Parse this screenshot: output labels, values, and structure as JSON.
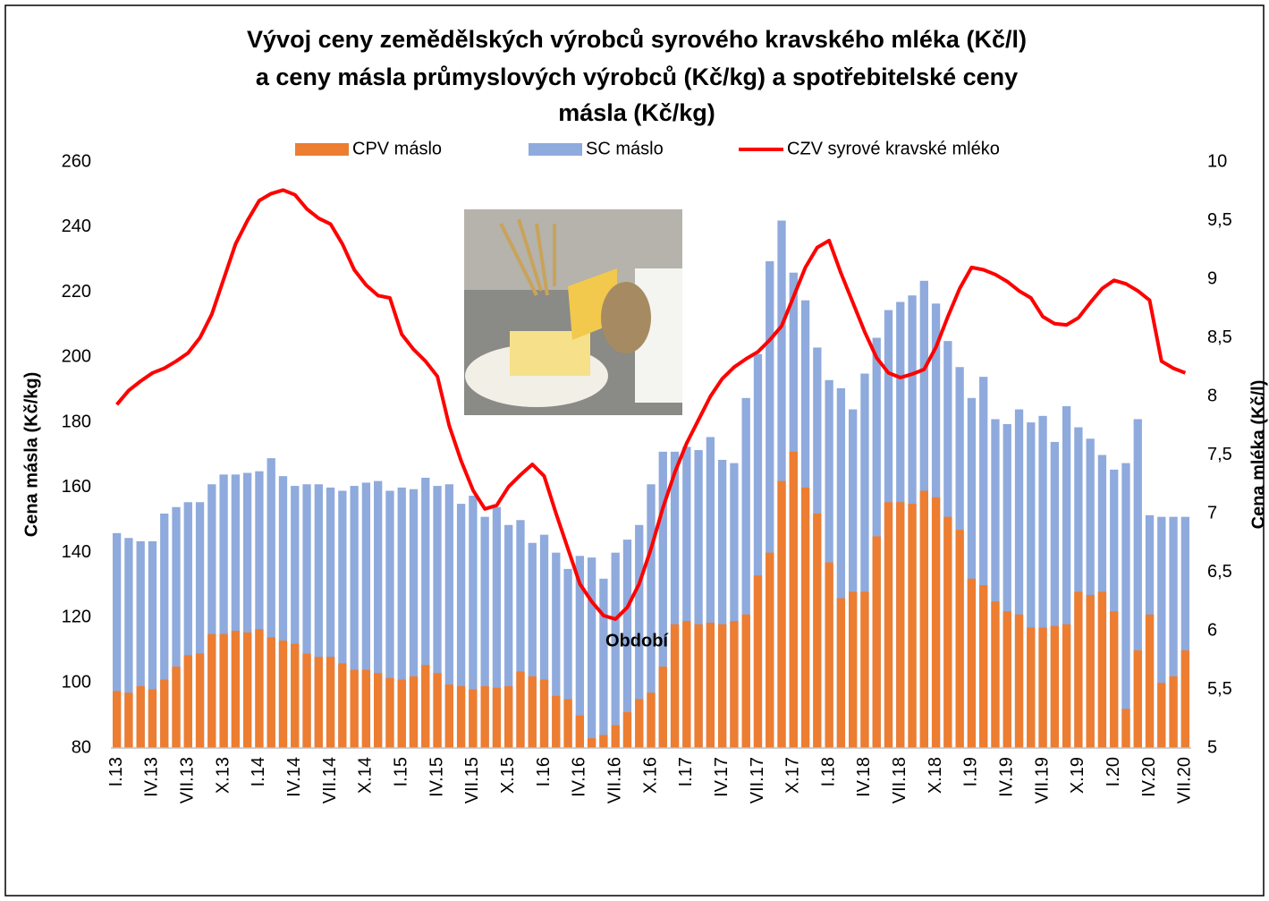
{
  "chart_data": {
    "type": "bar-line",
    "title": [
      "Vývoj ceny zemědělských výrobců syrového kravského mléka (Kč/l)",
      "a  ceny másla průmyslových výrobců (Kč/kg) a spotřebitelské ceny",
      "másla (Kč/kg)"
    ],
    "x_label": "Období",
    "y_label": "Cena másla (Kč/kg)",
    "y2_label": "Cena mléka (Kč/l)",
    "categories": [
      "I.13",
      null,
      null,
      "IV.13",
      null,
      null,
      "VII.13",
      null,
      null,
      "X.13",
      null,
      null,
      "I.14",
      null,
      null,
      "IV.14",
      null,
      null,
      "VII.14",
      null,
      null,
      "X.14",
      null,
      null,
      "I.15",
      null,
      null,
      "IV.15",
      null,
      null,
      "VII.15",
      null,
      null,
      "X.15",
      null,
      null,
      "I.16",
      null,
      null,
      "IV.16",
      null,
      null,
      "VII.16",
      null,
      null,
      "X.16",
      null,
      null,
      "I.17",
      null,
      null,
      "IV.17",
      null,
      null,
      "VII.17",
      null,
      null,
      "X.17",
      null,
      null,
      "I.18",
      null,
      null,
      "IV.18",
      null,
      null,
      "VII.18",
      null,
      null,
      "X.18",
      null,
      null,
      "I.19",
      null,
      null,
      "IV.19",
      null,
      null,
      "VII.19",
      null,
      null,
      "X.19",
      null,
      null,
      "I.20",
      null,
      null,
      "IV.20",
      null,
      null,
      "VII.20"
    ],
    "series": [
      {
        "name": "CPV máslo",
        "color": "#ed7d31",
        "values": [
          97.5,
          97,
          99,
          98,
          101,
          105,
          108.5,
          109,
          115,
          115,
          116,
          115.5,
          116.5,
          114,
          113,
          112,
          109,
          108,
          108,
          106,
          104,
          104,
          103,
          101.5,
          101,
          102,
          105.5,
          103,
          99.5,
          99,
          98,
          99,
          98.5,
          99,
          103.5,
          102,
          101,
          96,
          95,
          90,
          83,
          84,
          87,
          91,
          95,
          97,
          105,
          118,
          119,
          118,
          118.5,
          118,
          119,
          121,
          133,
          140,
          162,
          171,
          160,
          152,
          137,
          126,
          128,
          128,
          145,
          155.5,
          155.5,
          155,
          159,
          157,
          151,
          147,
          132,
          130,
          125,
          122,
          121,
          117,
          117,
          117.5,
          118,
          128,
          127,
          128,
          122,
          92,
          110,
          121,
          100,
          102,
          110
        ]
      },
      {
        "name": "SC máslo",
        "color": "#8faadc",
        "values": [
          146,
          144.5,
          143.5,
          143.5,
          152,
          154,
          155.5,
          155.5,
          161,
          164,
          164,
          164.5,
          165,
          169,
          163.5,
          160.5,
          161,
          161,
          160,
          159,
          160.5,
          161.5,
          162,
          159,
          160,
          159.5,
          163,
          160.5,
          161,
          155,
          157.5,
          151,
          154,
          148.5,
          150,
          143,
          145.5,
          140,
          135,
          139,
          138.5,
          132,
          140,
          144,
          148.5,
          161,
          171,
          171,
          172.5,
          171.5,
          175.5,
          168.5,
          167.5,
          187.5,
          201,
          229.5,
          242,
          226,
          217.5,
          203,
          193,
          190.5,
          184,
          195,
          206,
          214.5,
          217,
          219,
          223.5,
          216.5,
          205,
          197,
          187.5,
          194,
          181,
          179.5,
          184,
          180,
          182,
          174,
          185,
          178.5,
          175,
          170,
          165.5,
          167.5,
          181,
          151.5,
          151,
          151,
          151
        ]
      },
      {
        "name": "CZV syrové kravské mléko",
        "color": "#ff0000",
        "axis": "y2",
        "values": [
          7.93,
          8.05,
          8.13,
          8.2,
          8.24,
          8.3,
          8.37,
          8.5,
          8.7,
          9.0,
          9.3,
          9.5,
          9.67,
          9.73,
          9.76,
          9.72,
          9.6,
          9.52,
          9.47,
          9.3,
          9.08,
          8.95,
          8.86,
          8.84,
          8.53,
          8.4,
          8.3,
          8.17,
          7.75,
          7.45,
          7.2,
          7.04,
          7.07,
          7.23,
          7.33,
          7.42,
          7.32,
          7.0,
          6.7,
          6.4,
          6.25,
          6.13,
          6.1,
          6.2,
          6.4,
          6.7,
          7.05,
          7.35,
          7.6,
          7.8,
          8.0,
          8.15,
          8.25,
          8.32,
          8.38,
          8.48,
          8.6,
          8.85,
          9.1,
          9.27,
          9.33,
          9.05,
          8.8,
          8.55,
          8.33,
          8.2,
          8.16,
          8.19,
          8.23,
          8.42,
          8.68,
          8.92,
          9.1,
          9.08,
          9.04,
          8.98,
          8.9,
          8.84,
          8.68,
          8.62,
          8.61,
          8.67,
          8.8,
          8.92,
          8.99,
          8.96,
          8.9,
          8.82,
          8.3,
          8.24,
          8.2
        ]
      }
    ],
    "ylim": [
      80,
      260
    ],
    "yticks": [
      80,
      100,
      120,
      140,
      160,
      180,
      200,
      220,
      240,
      260
    ],
    "y2lim": [
      5,
      10
    ],
    "y2ticks": [
      5,
      {
        "value": 5.5,
        "label": "5,5"
      },
      6,
      {
        "value": 6.5,
        "label": "6,5"
      },
      7,
      {
        "value": 7.5,
        "label": "7,5"
      },
      8,
      {
        "value": 8.5,
        "label": "8,5"
      },
      9,
      {
        "value": 9.5,
        "label": "9,5"
      },
      10
    ],
    "grid": false,
    "legend": "top"
  }
}
